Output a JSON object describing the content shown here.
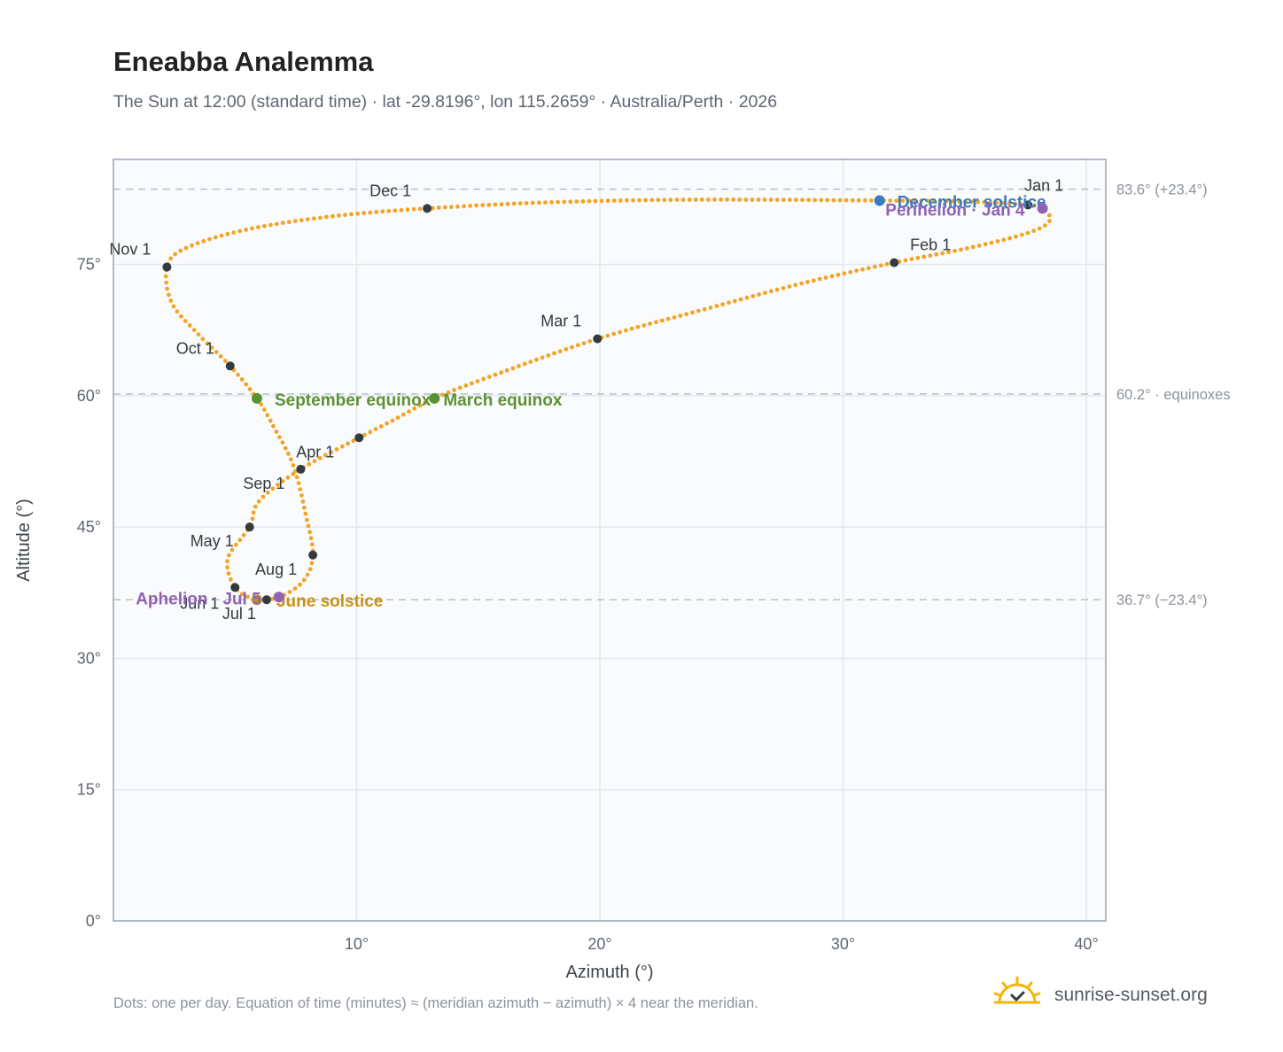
{
  "header": {
    "title": "Eneabba Analemma",
    "subtitle": "The Sun at 12:00 (standard time) · lat -29.8196°, lon 115.2659° · Australia/Perth · 2026"
  },
  "footer": {
    "note": "Dots: one per day. Equation of time (minutes) ≈ (meridian azimuth − azimuth) × 4 near the meridian.",
    "brand": "sunrise-sunset.org"
  },
  "colors": {
    "curve": "#f2a428",
    "month_marker": "#333a40",
    "equinox": "#5b9231",
    "june_solstice": "#c79216",
    "december_solstice": "#3a7bbf",
    "apsis": "#8f62b3",
    "plot_background": "#f9fbfd",
    "grid": "#e3e8ee",
    "reference_line": "#b8c0ca"
  },
  "chart_data": {
    "type": "scatter",
    "title": "Eneabba Analemma",
    "xlabel": "Azimuth (°)",
    "ylabel": "Altitude (°)",
    "xlim": [
      0,
      40.8
    ],
    "ylim": [
      0,
      87
    ],
    "x_ticks": [
      10,
      20,
      30,
      40
    ],
    "x_tick_labels": [
      "10°",
      "20°",
      "30°",
      "40°"
    ],
    "y_ticks": [
      0,
      15,
      30,
      45,
      60,
      75
    ],
    "y_tick_labels": [
      "0°",
      "15°",
      "30°",
      "45°",
      "60°",
      "75°"
    ],
    "grid": true,
    "reference_lines": [
      {
        "y": 83.6,
        "label": "83.6° (+23.4°)"
      },
      {
        "y": 60.2,
        "label": "60.2° · equinoxes"
      },
      {
        "y": 36.7,
        "label": "36.7° (−23.4°)"
      }
    ],
    "series": [
      {
        "points": [
          {
            "x": 37.6,
            "y": 81.8
          },
          {
            "x": 38.2,
            "y": 81.4
          },
          {
            "x": 38.5,
            "y": 80.0
          },
          {
            "x": 37.6,
            "y": 78.6
          },
          {
            "x": 35.2,
            "y": 76.9
          },
          {
            "x": 32.1,
            "y": 75.2
          },
          {
            "x": 28.4,
            "y": 72.9
          },
          {
            "x": 24.2,
            "y": 69.8
          },
          {
            "x": 19.9,
            "y": 66.5
          },
          {
            "x": 15.6,
            "y": 62.3
          },
          {
            "x": 13.2,
            "y": 59.7
          },
          {
            "x": 11.5,
            "y": 57.2
          },
          {
            "x": 10.1,
            "y": 55.2
          },
          {
            "x": 7.7,
            "y": 51.6
          },
          {
            "x": 6.0,
            "y": 48.0
          },
          {
            "x": 5.6,
            "y": 45.0
          },
          {
            "x": 4.7,
            "y": 41.4
          },
          {
            "x": 5.0,
            "y": 38.1
          },
          {
            "x": 5.8,
            "y": 36.8
          },
          {
            "x": 6.8,
            "y": 37.0
          },
          {
            "x": 7.8,
            "y": 38.8
          },
          {
            "x": 8.2,
            "y": 41.8
          },
          {
            "x": 7.9,
            "y": 46.5
          },
          {
            "x": 7.4,
            "y": 52.0
          },
          {
            "x": 6.6,
            "y": 56.4
          },
          {
            "x": 5.9,
            "y": 59.7
          },
          {
            "x": 4.8,
            "y": 63.4
          },
          {
            "x": 3.5,
            "y": 67.0
          },
          {
            "x": 2.4,
            "y": 70.6
          },
          {
            "x": 2.2,
            "y": 74.7
          },
          {
            "x": 3.0,
            "y": 76.9
          },
          {
            "x": 5.5,
            "y": 79.0
          },
          {
            "x": 9.0,
            "y": 80.5
          },
          {
            "x": 12.9,
            "y": 81.4
          },
          {
            "x": 18.0,
            "y": 82.1
          },
          {
            "x": 24.0,
            "y": 82.4
          },
          {
            "x": 31.5,
            "y": 82.3
          },
          {
            "x": 35.0,
            "y": 82.2
          },
          {
            "x": 37.6,
            "y": 81.8
          }
        ]
      }
    ],
    "month_markers": [
      {
        "label": "Jan 1",
        "x": 37.6,
        "y": 81.8
      },
      {
        "label": "Feb 1",
        "x": 32.1,
        "y": 75.2
      },
      {
        "label": "Mar 1",
        "x": 19.9,
        "y": 66.5
      },
      {
        "label": "Apr 1",
        "x": 10.1,
        "y": 55.2
      },
      {
        "label": "May 1",
        "x": 5.6,
        "y": 45.0
      },
      {
        "label": "Jun 1",
        "x": 5.0,
        "y": 38.1
      },
      {
        "label": "Jul 1",
        "x": 6.3,
        "y": 36.7
      },
      {
        "label": "Aug 1",
        "x": 8.2,
        "y": 41.8
      },
      {
        "label": "Sep 1",
        "x": 7.7,
        "y": 51.6
      },
      {
        "label": "Oct 1",
        "x": 4.8,
        "y": 63.4
      },
      {
        "label": "Nov 1",
        "x": 2.2,
        "y": 74.7
      },
      {
        "label": "Dec 1",
        "x": 12.9,
        "y": 81.4
      }
    ],
    "events": [
      {
        "label": "March equinox",
        "x": 13.2,
        "y": 59.7,
        "color": "#5b9231"
      },
      {
        "label": "September equinox",
        "x": 5.9,
        "y": 59.7,
        "color": "#5b9231"
      },
      {
        "label": "June solstice",
        "x": 5.9,
        "y": 36.7,
        "color": "#c79216"
      },
      {
        "label": "December solstice",
        "x": 31.5,
        "y": 82.3,
        "color": "#3a7bbf"
      },
      {
        "label": "Perihelion · Jan 4",
        "x": 38.2,
        "y": 81.4,
        "color": "#8f62b3"
      },
      {
        "label": "Aphelion · Jul 5",
        "x": 6.8,
        "y": 37.0,
        "color": "#8f62b3"
      }
    ]
  }
}
